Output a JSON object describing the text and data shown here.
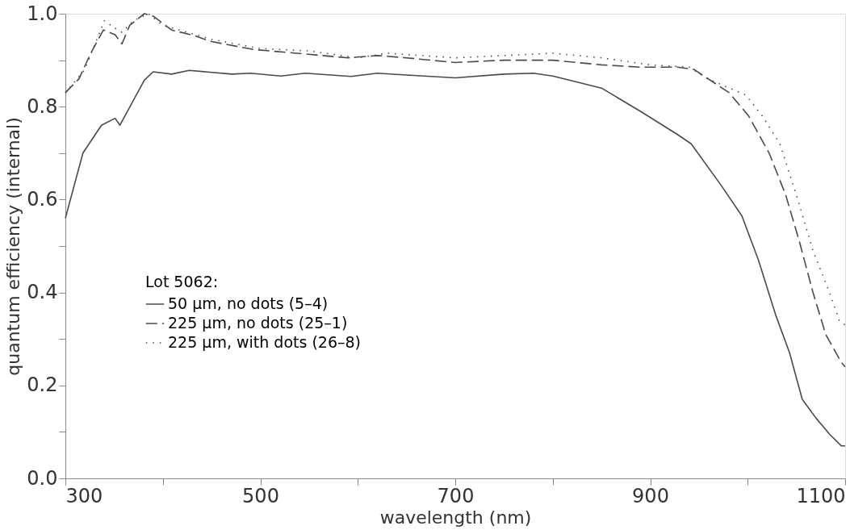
{
  "chart_data": {
    "type": "line",
    "xlabel": "wavelength (nm)",
    "ylabel": "quantum efficiency (internal)",
    "legend_title": "Lot 5062:",
    "legend": "bottom left",
    "grid": false,
    "marker": "none",
    "xlim": [
      300,
      1100
    ],
    "ylim": [
      0.0,
      1.0
    ],
    "xticks": [
      300,
      {
        "value": 400,
        "label": null
      },
      500,
      {
        "value": 600,
        "label": null
      },
      700,
      {
        "value": 800,
        "label": null
      },
      900,
      {
        "value": 1000,
        "label": null
      },
      1100
    ],
    "yticks": [
      {
        "value": 0.0,
        "label": "0.0"
      },
      {
        "value": 0.1,
        "label": null
      },
      0.2,
      {
        "value": 0.3,
        "label": null
      },
      0.4,
      {
        "value": 0.5,
        "label": null
      },
      0.6,
      {
        "value": 0.7,
        "label": null
      },
      0.8,
      {
        "value": 0.9,
        "label": null
      },
      {
        "value": 1.0,
        "label": "1.0"
      }
    ],
    "series": [
      {
        "name": "50 μm, no dots (5–4)",
        "color": "#4a4a4a",
        "line_style": "solid",
        "x": [
          300,
          318,
          337,
          351,
          356,
          381,
          390,
          409,
          427,
          471,
          490,
          521,
          546,
          593,
          620,
          650,
          700,
          750,
          780,
          800,
          850,
          890,
          928,
          942,
          973,
          994,
          1011,
          1029,
          1043,
          1056,
          1070,
          1084,
          1096,
          1100
        ],
        "values": [
          0.56,
          0.7,
          0.76,
          0.775,
          0.76,
          0.857,
          0.875,
          0.87,
          0.878,
          0.87,
          0.872,
          0.866,
          0.872,
          0.865,
          0.872,
          0.868,
          0.862,
          0.87,
          0.872,
          0.866,
          0.84,
          0.79,
          0.74,
          0.72,
          0.63,
          0.565,
          0.47,
          0.35,
          0.27,
          0.17,
          0.13,
          0.095,
          0.07,
          0.07
        ]
      },
      {
        "name": "225 μm, no dots (25–1)",
        "color": "#4a4a4a",
        "line_style": "dashed",
        "x": [
          300,
          314,
          326,
          339,
          351,
          358,
          366,
          381,
          390,
          409,
          432,
          450,
          493,
          537,
          590,
          620,
          650,
          700,
          750,
          800,
          850,
          890,
          928,
          945,
          981,
          1001,
          1022,
          1039,
          1053,
          1067,
          1080,
          1096,
          1100
        ],
        "values": [
          0.83,
          0.86,
          0.915,
          0.965,
          0.955,
          0.935,
          0.975,
          1.0,
          0.995,
          0.965,
          0.953,
          0.94,
          0.923,
          0.915,
          0.905,
          0.91,
          0.905,
          0.895,
          0.9,
          0.9,
          0.89,
          0.885,
          0.885,
          0.88,
          0.83,
          0.78,
          0.7,
          0.61,
          0.51,
          0.4,
          0.31,
          0.25,
          0.24
        ]
      },
      {
        "name": "225 μm, with dots (26–8)",
        "color": "#4a4a4a",
        "line_style": "dotted",
        "x": [
          300,
          320,
          340,
          350,
          358,
          370,
          385,
          400,
          450,
          500,
          550,
          600,
          630,
          700,
          750,
          800,
          850,
          900,
          940,
          959,
          998,
          1015,
          1033,
          1050,
          1067,
          1084,
          1094,
          1100
        ],
        "values": [
          0.83,
          0.88,
          0.985,
          0.97,
          0.96,
          0.985,
          1.0,
          0.975,
          0.945,
          0.925,
          0.92,
          0.905,
          0.915,
          0.905,
          0.91,
          0.915,
          0.905,
          0.89,
          0.885,
          0.86,
          0.825,
          0.78,
          0.72,
          0.61,
          0.49,
          0.4,
          0.34,
          0.33
        ]
      }
    ]
  }
}
